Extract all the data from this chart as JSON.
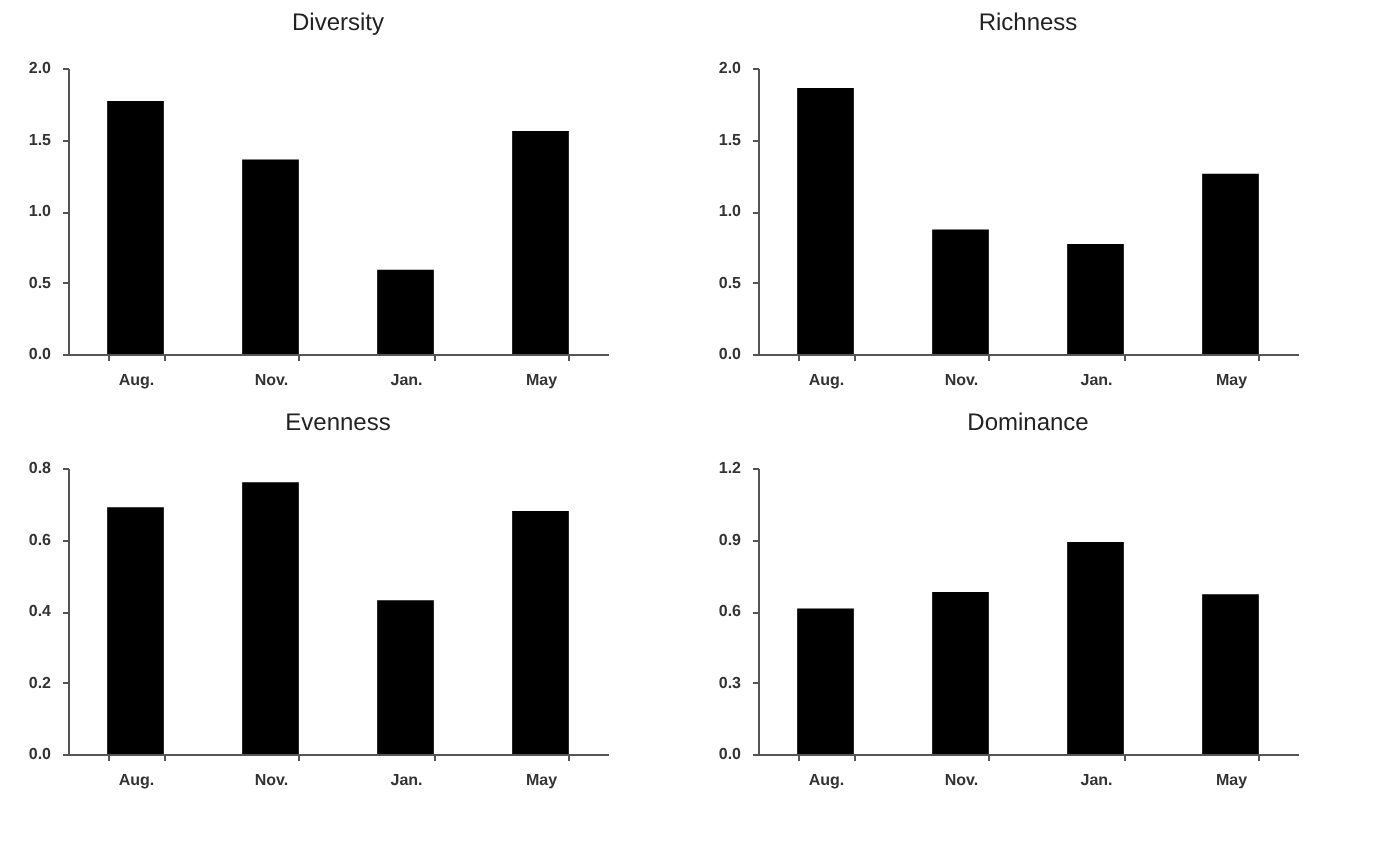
{
  "chart_data": [
    {
      "type": "bar",
      "title": "Diversity",
      "categories": [
        "Aug.",
        "Nov.",
        "Jan.",
        "May"
      ],
      "values": [
        1.77,
        1.36,
        0.59,
        1.56
      ],
      "color": "#000000",
      "ylim": [
        0,
        2
      ],
      "yticks": [
        {
          "value": 0,
          "label": "0.0"
        },
        {
          "value": 0.5,
          "label": "0.5"
        },
        {
          "value": 1,
          "label": "1.0"
        },
        {
          "value": 1.5,
          "label": "1.5"
        },
        {
          "value": 2,
          "label": "2.0"
        }
      ]
    },
    {
      "type": "bar",
      "title": "Richness",
      "categories": [
        "Aug.",
        "Nov.",
        "Jan.",
        "May"
      ],
      "values": [
        1.86,
        0.87,
        0.77,
        1.26
      ],
      "color": "#000000",
      "ylim": [
        0,
        2
      ],
      "yticks": [
        {
          "value": 0,
          "label": "0.0"
        },
        {
          "value": 0.5,
          "label": "0.5"
        },
        {
          "value": 1,
          "label": "1.0"
        },
        {
          "value": 1.5,
          "label": "1.5"
        },
        {
          "value": 2,
          "label": "2.0"
        }
      ]
    },
    {
      "type": "bar",
      "title": "Evenness",
      "categories": [
        "Aug.",
        "Nov.",
        "Jan.",
        "May"
      ],
      "values": [
        0.69,
        0.76,
        0.43,
        0.68
      ],
      "color": "#000000",
      "ylim": [
        0,
        0.8
      ],
      "yticks": [
        {
          "value": 0,
          "label": "0.0"
        },
        {
          "value": 0.2,
          "label": "0.2"
        },
        {
          "value": 0.4,
          "label": "0.4"
        },
        {
          "value": 0.6,
          "label": "0.6"
        },
        {
          "value": 0.8,
          "label": "0.8"
        }
      ]
    },
    {
      "type": "bar",
      "title": "Dominance",
      "categories": [
        "Aug.",
        "Nov.",
        "Jan.",
        "May"
      ],
      "values": [
        0.61,
        0.68,
        0.89,
        0.67
      ],
      "color": "#000000",
      "ylim": [
        0,
        1.2
      ],
      "yticks": [
        {
          "value": 0,
          "label": "0.0"
        },
        {
          "value": 0.3,
          "label": "0.3"
        },
        {
          "value": 0.6,
          "label": "0.6"
        },
        {
          "value": 0.9,
          "label": "0.9"
        },
        {
          "value": 1.2,
          "label": "1.2"
        }
      ]
    }
  ]
}
